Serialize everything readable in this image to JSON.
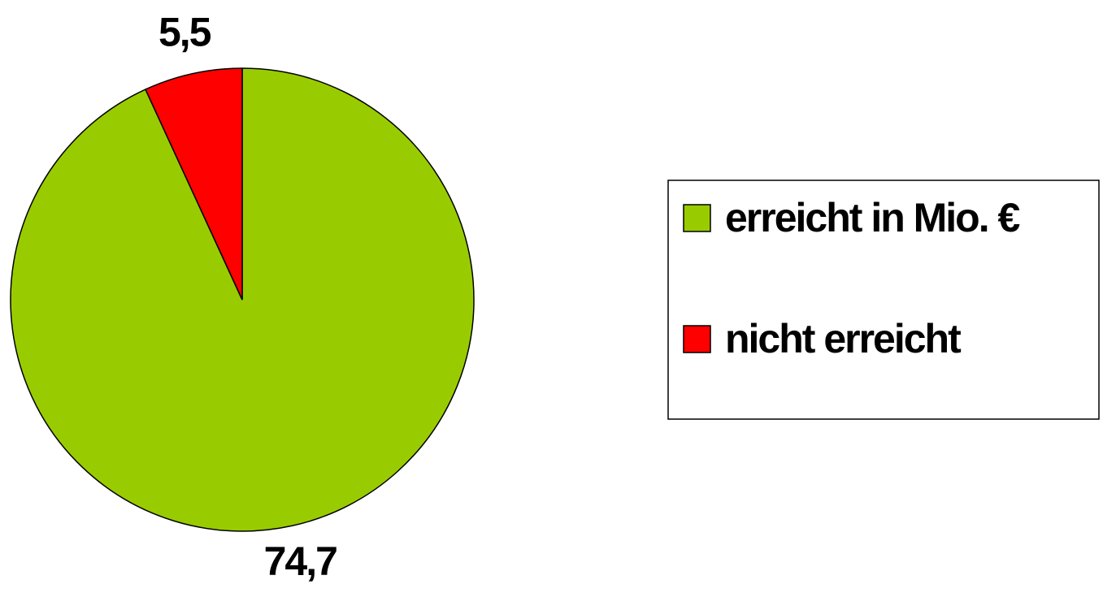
{
  "chart_data": {
    "type": "pie",
    "categories": [
      "erreicht in Mio. €",
      "nicht erreicht"
    ],
    "values": [
      74.7,
      5.5
    ],
    "value_labels": [
      "74,7",
      "5,5"
    ],
    "colors": [
      "#99cc00",
      "#ff0000"
    ],
    "legend": "right"
  }
}
